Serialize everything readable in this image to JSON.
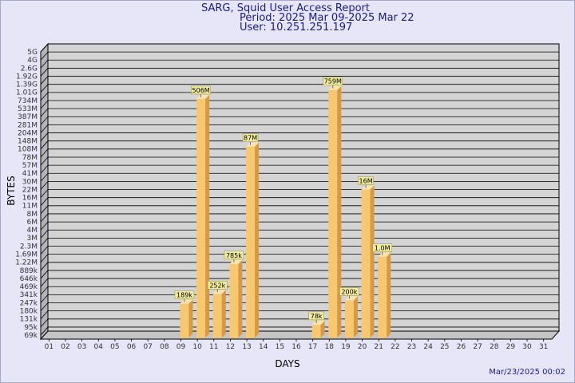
{
  "header": {
    "title": "SARG, Squid User Access Report",
    "period": "Period: 2025 Mar 09-2025 Mar 22",
    "user": "User: 10.251.251.197"
  },
  "footer": {
    "timestamp": "Mar/23/2025 00:02"
  },
  "colors": {
    "background": "#e6e6f8",
    "plot_face": "#d4d4d4",
    "plot_side": "#b4b4b4",
    "bar_front": "#f8c870",
    "bar_side": "#d89a40",
    "bar_top": "#ffe4a8",
    "label_bg": "#f2eca0",
    "title": "#1a1a8c"
  },
  "chart_data": {
    "type": "bar",
    "title": "SARG, Squid User Access Report",
    "xlabel": "DAYS",
    "ylabel": "BYTES",
    "y_scale": "log",
    "grid": true,
    "y_ticks": [
      "5G",
      "4G",
      "2.6G",
      "1.92G",
      "1.39G",
      "1.01G",
      "734M",
      "533M",
      "387M",
      "281M",
      "204M",
      "148M",
      "108M",
      "78M",
      "57M",
      "41M",
      "30M",
      "22M",
      "16M",
      "11M",
      "8M",
      "6M",
      "4M",
      "3M",
      "2.3M",
      "1.69M",
      "1.22M",
      "889k",
      "646k",
      "469k",
      "341k",
      "247k",
      "180k",
      "131k",
      "95k",
      "69k"
    ],
    "categories": [
      "01",
      "02",
      "03",
      "04",
      "05",
      "06",
      "07",
      "08",
      "09",
      "10",
      "11",
      "12",
      "13",
      "14",
      "15",
      "16",
      "17",
      "18",
      "19",
      "20",
      "21",
      "22",
      "23",
      "24",
      "25",
      "26",
      "27",
      "28",
      "29",
      "30",
      "31"
    ],
    "bars": [
      {
        "day": "09",
        "label": "189k",
        "level": 3.9
      },
      {
        "day": "10",
        "label": "506M",
        "level": 29.2
      },
      {
        "day": "11",
        "label": "252k",
        "level": 5.1
      },
      {
        "day": "12",
        "label": "785k",
        "level": 8.8
      },
      {
        "day": "13",
        "label": "87M",
        "level": 23.3
      },
      {
        "day": "17",
        "label": "78k",
        "level": 1.3
      },
      {
        "day": "18",
        "label": "759M",
        "level": 30.3
      },
      {
        "day": "19",
        "label": "200k",
        "level": 4.3
      },
      {
        "day": "20",
        "label": "16M",
        "level": 18.0
      },
      {
        "day": "21",
        "label": "1.0M",
        "level": 9.7
      }
    ]
  }
}
